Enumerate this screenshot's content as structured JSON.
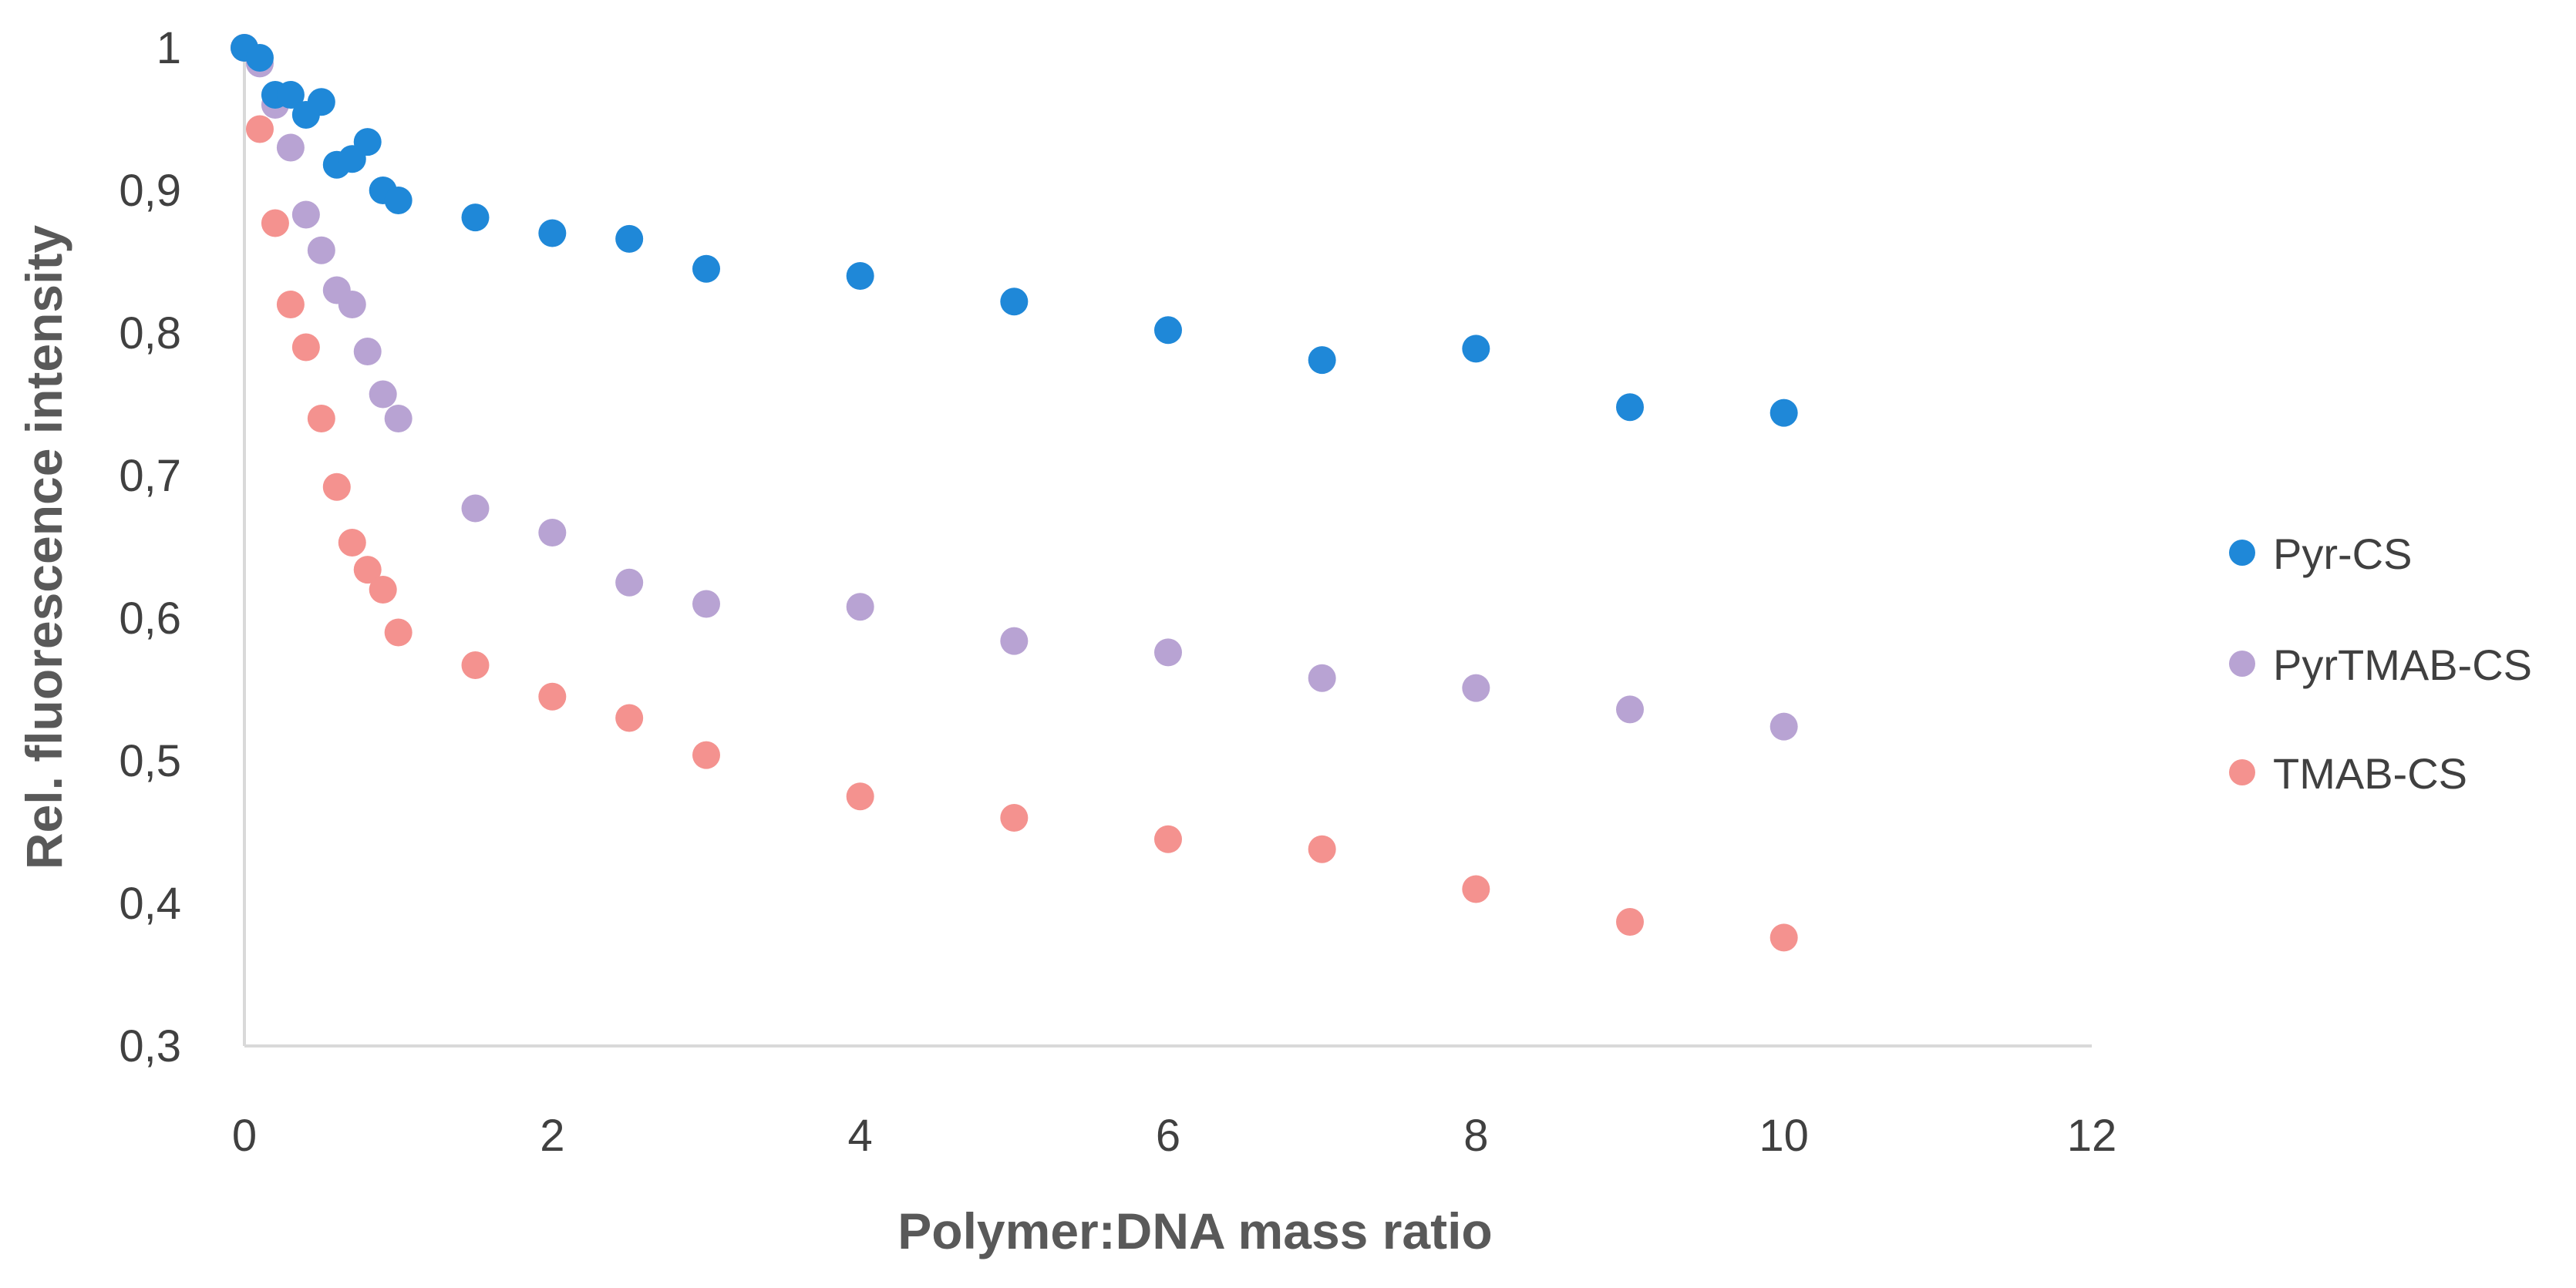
{
  "chart_data": {
    "type": "scatter",
    "title": "",
    "xlabel": "Polymer:DNA mass ratio",
    "ylabel": "Rel. fluorescence intensity",
    "xlim": [
      0,
      12
    ],
    "ylim": [
      0.3,
      1
    ],
    "x_ticks": [
      "0",
      "2",
      "4",
      "6",
      "8",
      "10",
      "12"
    ],
    "y_ticks": [
      "0,3",
      "0,4",
      "0,5",
      "0,6",
      "0,7",
      "0,8",
      "0,9",
      "1"
    ],
    "grid": false,
    "legend_position": "right",
    "series": [
      {
        "name": "Pyr-CS",
        "color": "#1f88d8",
        "x": [
          0,
          0.1,
          0.2,
          0.3,
          0.4,
          0.5,
          0.6,
          0.7,
          0.8,
          0.9,
          1,
          1.5,
          2,
          2.5,
          3,
          4,
          5,
          6,
          7,
          8,
          9,
          10
        ],
        "y": [
          1.0,
          0.993,
          0.967,
          0.967,
          0.953,
          0.962,
          0.918,
          0.922,
          0.934,
          0.9,
          0.893,
          0.881,
          0.87,
          0.866,
          0.845,
          0.84,
          0.822,
          0.802,
          0.781,
          0.789,
          0.748,
          0.744
        ]
      },
      {
        "name": "PyrTMAB-CS",
        "color": "#b8a3d3",
        "x": [
          0,
          0.1,
          0.2,
          0.3,
          0.4,
          0.5,
          0.6,
          0.7,
          0.8,
          0.9,
          1,
          1.5,
          2,
          2.5,
          3,
          4,
          5,
          6,
          7,
          8,
          9,
          10
        ],
        "y": [
          1.0,
          0.989,
          0.96,
          0.93,
          0.883,
          0.858,
          0.83,
          0.82,
          0.787,
          0.757,
          0.74,
          0.677,
          0.66,
          0.625,
          0.61,
          0.608,
          0.584,
          0.576,
          0.558,
          0.551,
          0.536,
          0.524
        ]
      },
      {
        "name": "TMAB-CS",
        "color": "#f4928f",
        "x": [
          0,
          0.1,
          0.2,
          0.3,
          0.4,
          0.5,
          0.6,
          0.7,
          0.8,
          0.9,
          1,
          1.5,
          2,
          2.5,
          3,
          4,
          5,
          6,
          7,
          8,
          9,
          10
        ],
        "y": [
          1.0,
          0.943,
          0.877,
          0.82,
          0.79,
          0.74,
          0.692,
          0.653,
          0.634,
          0.62,
          0.59,
          0.567,
          0.545,
          0.53,
          0.504,
          0.475,
          0.46,
          0.445,
          0.438,
          0.41,
          0.387,
          0.376
        ]
      }
    ]
  }
}
